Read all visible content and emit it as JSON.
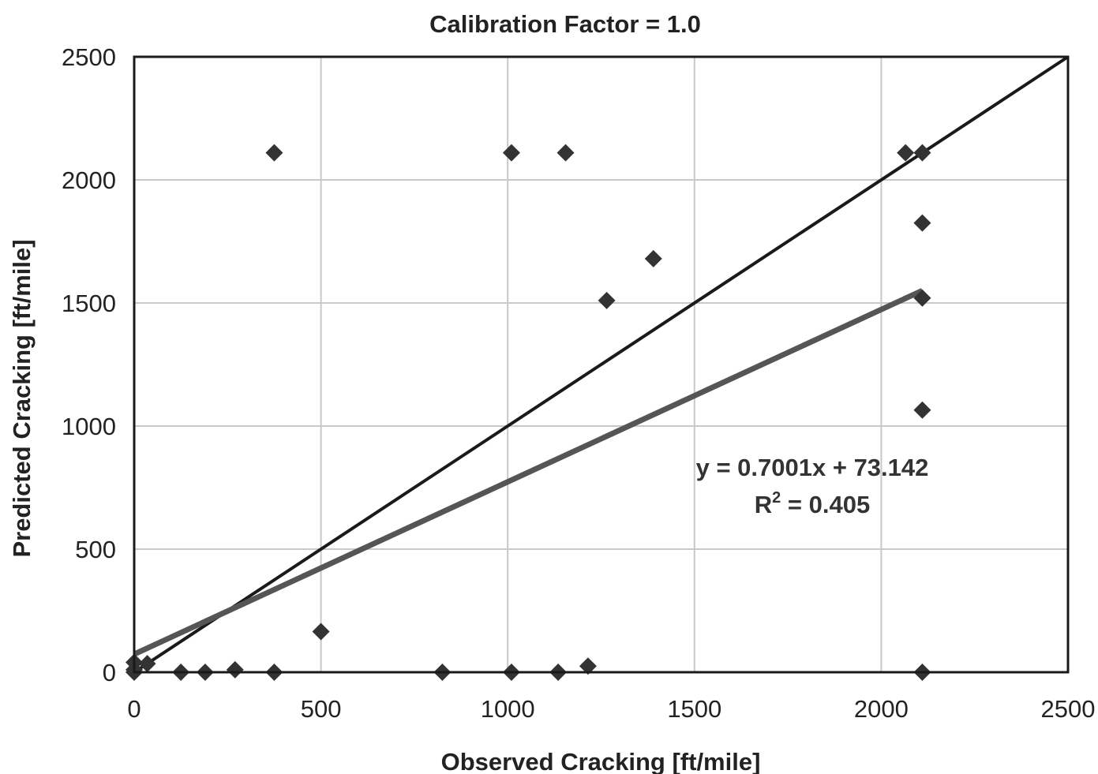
{
  "chart_data": {
    "type": "scatter",
    "title": "Calibration Factor = 1.0",
    "xlabel": "Observed Cracking [ft/mile]",
    "ylabel": "Predicted Cracking [ft/mile]",
    "xlim": [
      0,
      2500
    ],
    "ylim": [
      0,
      2500
    ],
    "x_ticks": [
      0,
      500,
      1000,
      1500,
      2000,
      2500
    ],
    "y_ticks": [
      0,
      500,
      1000,
      1500,
      2000,
      2500
    ],
    "grid": true,
    "legend": "none",
    "colors": {
      "points": "#333333",
      "equality_line": "#1a1a1a",
      "trend_line": "#555555",
      "grid": "#c8c8c8"
    },
    "points": [
      {
        "x": 0,
        "y": 0
      },
      {
        "x": 0,
        "y": 10
      },
      {
        "x": 0,
        "y": 40
      },
      {
        "x": 35,
        "y": 35
      },
      {
        "x": 125,
        "y": 0
      },
      {
        "x": 190,
        "y": 0
      },
      {
        "x": 270,
        "y": 10
      },
      {
        "x": 375,
        "y": 0
      },
      {
        "x": 500,
        "y": 165
      },
      {
        "x": 825,
        "y": 0
      },
      {
        "x": 1010,
        "y": 0
      },
      {
        "x": 1135,
        "y": 0
      },
      {
        "x": 1215,
        "y": 25
      },
      {
        "x": 375,
        "y": 2110
      },
      {
        "x": 1010,
        "y": 2110
      },
      {
        "x": 1155,
        "y": 2110
      },
      {
        "x": 1265,
        "y": 1510
      },
      {
        "x": 1390,
        "y": 1680
      },
      {
        "x": 2065,
        "y": 2110
      },
      {
        "x": 2110,
        "y": 2110
      },
      {
        "x": 2110,
        "y": 1825
      },
      {
        "x": 2110,
        "y": 1520
      },
      {
        "x": 2110,
        "y": 1065
      },
      {
        "x": 2110,
        "y": 0
      }
    ],
    "lines": [
      {
        "role": "equality",
        "x": [
          0,
          2500
        ],
        "y": [
          0,
          2500
        ]
      },
      {
        "role": "trend",
        "x": [
          0,
          2110
        ],
        "y": [
          73.142,
          1550.35
        ]
      }
    ],
    "annotations": {
      "equation": "y = 0.7001x + 73.142",
      "r2_prefix": "R",
      "r2_sup": "2",
      "r2_suffix": " = 0.405"
    }
  }
}
